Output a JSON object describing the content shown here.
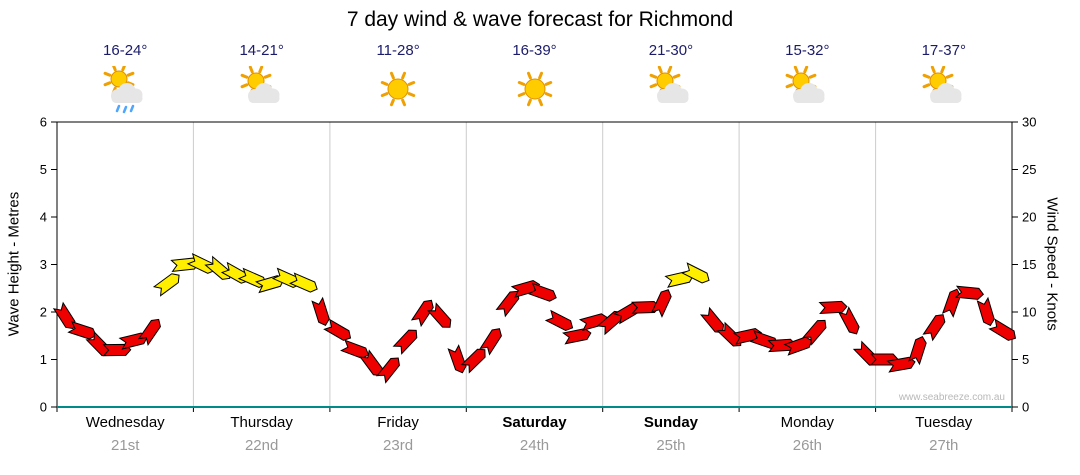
{
  "title": "7 day wind & wave forecast for Richmond",
  "watermark": "www.seabreeze.com.au",
  "accent_colors": {
    "temp_text": "#1b1b6b",
    "date_text": "#999999",
    "axis_bottom": "#008b8b",
    "day_separator": "#cccccc"
  },
  "header": {
    "days": [
      {
        "temp": "16-24°",
        "icon": "sun-cloud-rain"
      },
      {
        "temp": "14-21°",
        "icon": "sun-cloud"
      },
      {
        "temp": "11-28°",
        "icon": "sun"
      },
      {
        "temp": "16-39°",
        "icon": "sun"
      },
      {
        "temp": "21-30°",
        "icon": "sun-cloud"
      },
      {
        "temp": "15-32°",
        "icon": "sun-cloud"
      },
      {
        "temp": "17-37°",
        "icon": "sun-cloud"
      }
    ]
  },
  "chart_data": {
    "type": "line",
    "title": "7 day wind & wave forecast for Richmond",
    "xlabel": "",
    "ylabel": "Wave Height - Metres / Wind Speed - Knots",
    "left_axis": {
      "label": "Wave Height - Metres",
      "min": 0,
      "max": 6,
      "ticks": [
        0,
        1,
        2,
        3,
        4,
        5,
        6
      ]
    },
    "right_axis": {
      "label": "Wind Speed - Knots",
      "min": 0,
      "max": 30,
      "ticks": [
        0,
        5,
        10,
        15,
        20,
        25,
        30
      ]
    },
    "days": [
      {
        "name": "Wednesday",
        "date": "21st",
        "bold": false
      },
      {
        "name": "Thursday",
        "date": "22nd",
        "bold": false
      },
      {
        "name": "Friday",
        "date": "23rd",
        "bold": false
      },
      {
        "name": "Saturday",
        "date": "24th",
        "bold": true
      },
      {
        "name": "Sunday",
        "date": "25th",
        "bold": true
      },
      {
        "name": "Monday",
        "date": "26th",
        "bold": false
      },
      {
        "name": "Tuesday",
        "date": "27th",
        "bold": false
      }
    ],
    "x_unit": "8 samples per day across 7 days (approx. 3-hourly)",
    "series": [
      {
        "name": "Wind Speed (knots)",
        "values": [
          9.5,
          8,
          6.5,
          6,
          7,
          8,
          13,
          15,
          15,
          14.5,
          14,
          13.5,
          13,
          13.5,
          13,
          10,
          8,
          6,
          4.5,
          4,
          7,
          10,
          9.5,
          5,
          5,
          7,
          11,
          12.5,
          12,
          9,
          7.5,
          9,
          9,
          10,
          10.5,
          11,
          13.5,
          14,
          9,
          7.5,
          7.5,
          7,
          6.5,
          6.5,
          8,
          10.5,
          9,
          5.5,
          5,
          4.5,
          6,
          8.5,
          11,
          12,
          10,
          8
        ]
      }
    ],
    "colors": {
      "low": "#ee0000",
      "high": "#ffee00",
      "threshold_knots": 13,
      "rule": "arrow drawn yellow when wind >= 13 knots, red below"
    },
    "grid": "vertical day separators only",
    "legend": "none"
  }
}
